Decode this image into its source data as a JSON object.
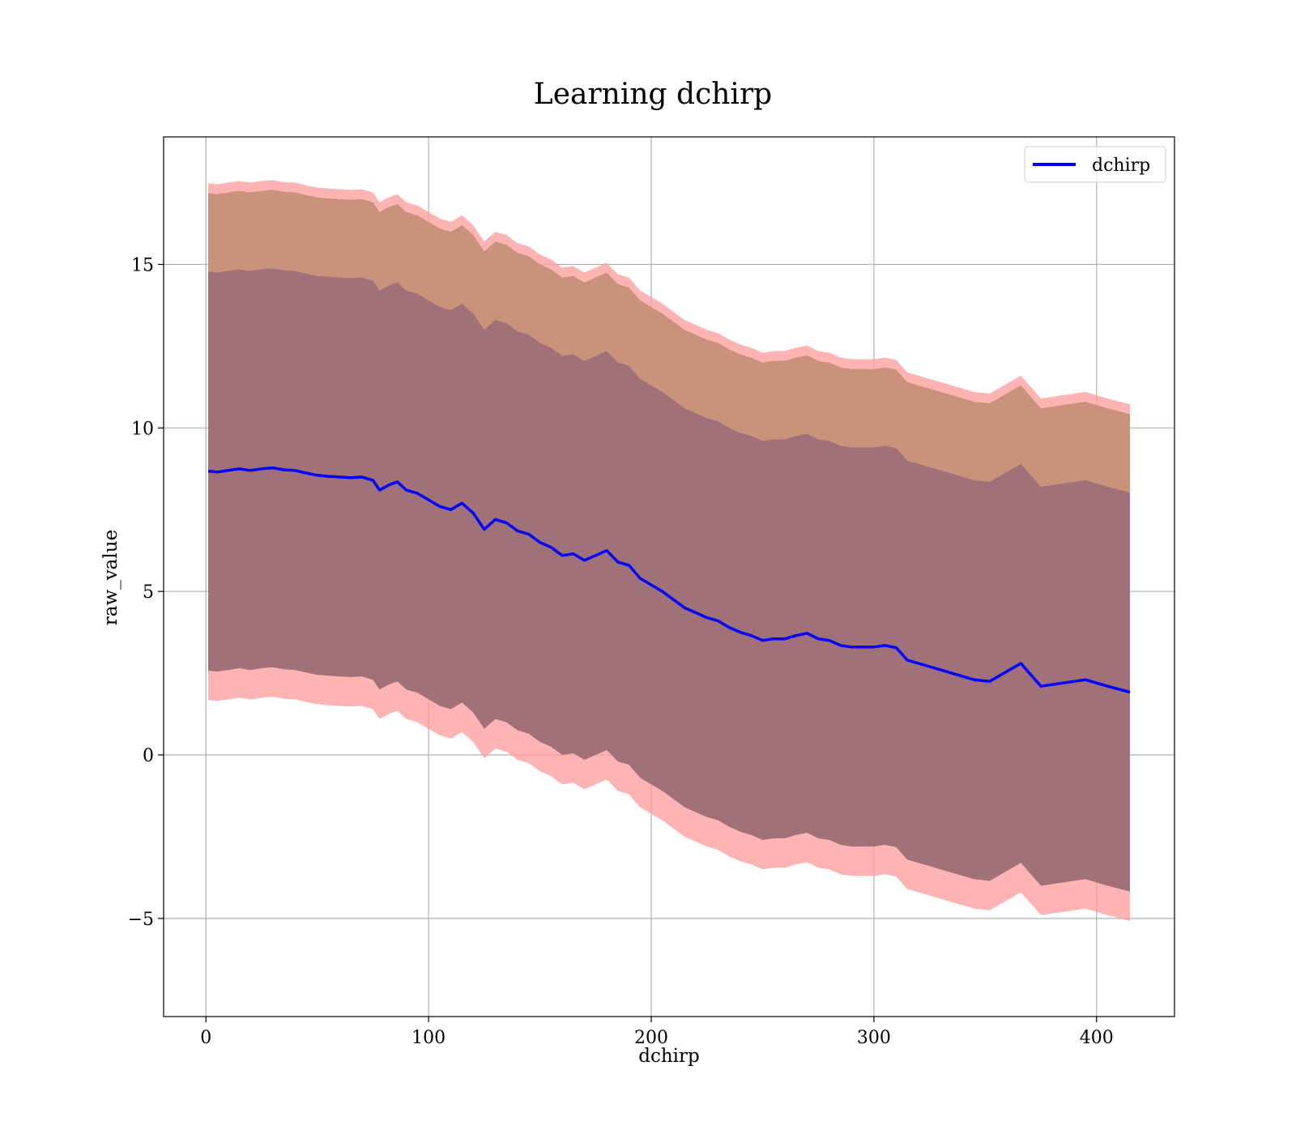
{
  "chart_data": {
    "type": "area",
    "title": "Learning dchirp",
    "xlabel": "dchirp",
    "ylabel": "raw_value",
    "xlim": [
      -19,
      435
    ],
    "ylim": [
      -8,
      18.9
    ],
    "xticks": [
      0,
      100,
      200,
      300,
      400
    ],
    "yticks": [
      -5,
      0,
      5,
      10,
      15
    ],
    "ytick_labels": [
      "−5",
      "0",
      "5",
      "10",
      "15"
    ],
    "grid": true,
    "legend": {
      "placement": "top-right",
      "entries": [
        "dchirp"
      ]
    },
    "colors": {
      "line": "#0000ff",
      "outer_band": "#ff9999",
      "middle_band": "#c8937a",
      "inner_band": "#a1717a"
    },
    "series": [
      {
        "name": "dchirp",
        "x": [
          1,
          5,
          10,
          15,
          20,
          25,
          30,
          35,
          40,
          45,
          50,
          55,
          60,
          65,
          70,
          75,
          78,
          82,
          86,
          90,
          95,
          100,
          105,
          110,
          115,
          120,
          125,
          130,
          135,
          140,
          145,
          150,
          155,
          160,
          165,
          170,
          175,
          180,
          185,
          190,
          195,
          200,
          205,
          210,
          215,
          220,
          225,
          230,
          235,
          240,
          245,
          250,
          255,
          260,
          265,
          270,
          275,
          280,
          285,
          290,
          295,
          300,
          305,
          310,
          315,
          320,
          325,
          335,
          345,
          352,
          366,
          375,
          385,
          395,
          405,
          415
        ],
        "values": [
          8.68,
          8.65,
          8.7,
          8.75,
          8.7,
          8.75,
          8.78,
          8.72,
          8.7,
          8.62,
          8.55,
          8.52,
          8.5,
          8.48,
          8.5,
          8.4,
          8.1,
          8.25,
          8.35,
          8.1,
          8.0,
          7.8,
          7.6,
          7.5,
          7.7,
          7.4,
          6.9,
          7.2,
          7.1,
          6.85,
          6.75,
          6.5,
          6.35,
          6.1,
          6.15,
          5.95,
          6.1,
          6.25,
          5.9,
          5.8,
          5.4,
          5.2,
          5.0,
          4.75,
          4.5,
          4.35,
          4.2,
          4.1,
          3.9,
          3.75,
          3.65,
          3.5,
          3.55,
          3.55,
          3.65,
          3.72,
          3.55,
          3.5,
          3.35,
          3.3,
          3.3,
          3.3,
          3.35,
          3.28,
          2.9,
          2.8,
          2.7,
          2.5,
          2.3,
          2.25,
          2.8,
          2.1,
          2.2,
          2.3,
          2.1,
          1.92
        ],
        "bands": {
          "outer_offset": [
            8.8,
            7.0
          ],
          "middle_offset": [
            8.5,
            6.0
          ],
          "inner_offset": [
            6.1,
            6.1
          ]
        }
      }
    ]
  }
}
